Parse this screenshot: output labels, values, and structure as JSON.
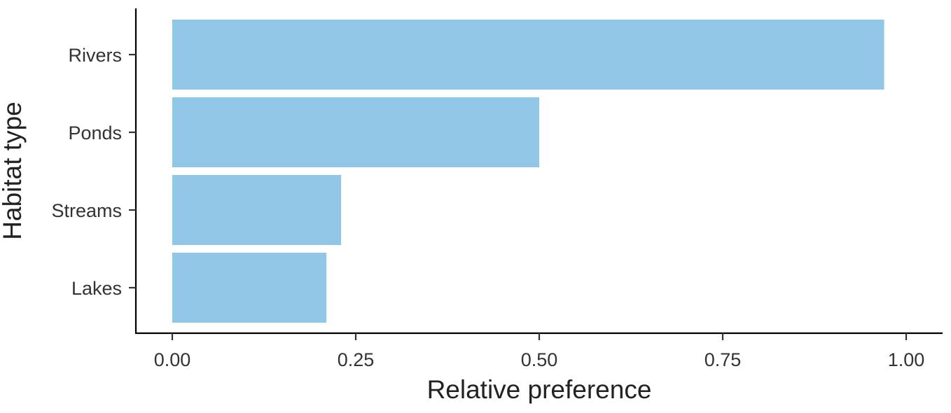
{
  "chart_data": {
    "type": "bar",
    "orientation": "horizontal",
    "categories": [
      "Rivers",
      "Ponds",
      "Streams",
      "Lakes"
    ],
    "values": [
      0.97,
      0.5,
      0.23,
      0.21
    ],
    "xlabel": "Relative preference",
    "ylabel": "Habitat type",
    "xlim": [
      0,
      1
    ],
    "xticks": [
      "0.00",
      "0.25",
      "0.50",
      "0.75",
      "1.00"
    ],
    "bar_color": "#92c6e7",
    "grid": false,
    "legend": "none"
  }
}
